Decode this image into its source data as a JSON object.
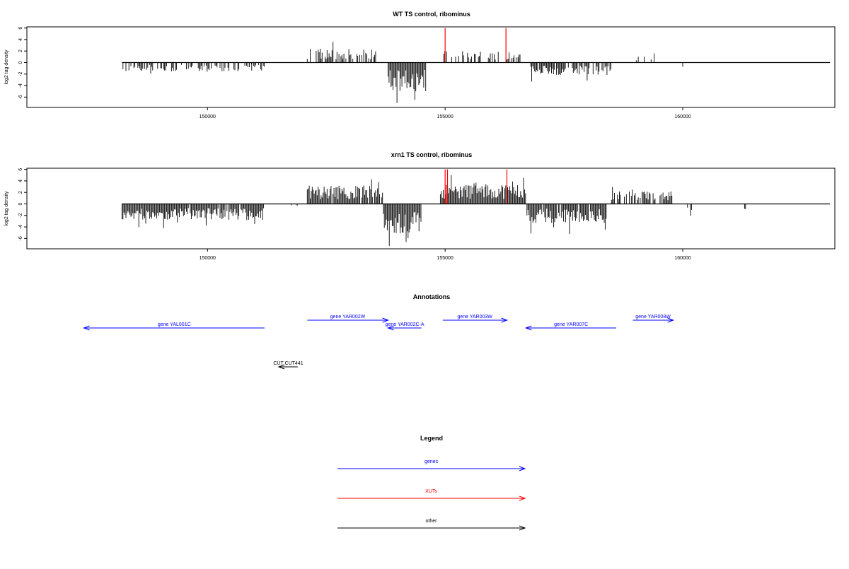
{
  "colors": {
    "gene": "#0000ff",
    "xut": "#ff0000",
    "other": "#000000",
    "bar": "#000000"
  },
  "chart_data": [
    {
      "type": "bar",
      "title": "WT TS control, ribominus",
      "ylabel": "log2 tag density",
      "xlim": [
        146200,
        163200
      ],
      "ylim": [
        -7.8,
        6.2
      ],
      "x_ticks": [
        150000,
        155000,
        160000
      ],
      "y_ticks": [
        -6,
        -4,
        -2,
        0,
        2,
        4,
        6
      ],
      "baseline": {
        "x": [
          148200,
          163100
        ],
        "y": 0
      },
      "series": [
        {
          "segments": [
            {
              "x0": 148200,
              "x1": 151200,
              "dir": -1,
              "amp": 1.6,
              "density": 0.5
            },
            {
              "x0": 150800,
              "x1": 151200,
              "dir": -1,
              "amp": 0.8,
              "density": 0.3
            },
            {
              "x0": 152100,
              "x1": 153600,
              "dir": 1,
              "amp": 2.4,
              "density": 0.6
            },
            {
              "x0": 153800,
              "x1": 154600,
              "dir": -1,
              "amp": 5.0,
              "density": 0.95
            },
            {
              "x0": 154950,
              "x1": 156600,
              "dir": 1,
              "amp": 2.0,
              "density": 0.5
            },
            {
              "x0": 156800,
              "x1": 158500,
              "dir": -1,
              "amp": 2.2,
              "density": 0.75
            },
            {
              "x0": 159000,
              "x1": 159500,
              "dir": 1,
              "amp": 1.4,
              "density": 0.25
            },
            {
              "x0": 160000,
              "x1": 160200,
              "dir": -1,
              "amp": 1.5,
              "density": 0.3
            }
          ]
        },
        {
          "name": "XUTs",
          "color": "#ff0000",
          "x": [
            155000,
            156280
          ],
          "values": [
            6.0,
            6.0
          ]
        }
      ]
    },
    {
      "type": "bar",
      "title": "xrn1 TS control, ribominus",
      "ylabel": "log2 tag density",
      "xlim": [
        146200,
        163200
      ],
      "ylim": [
        -7.8,
        6.2
      ],
      "x_ticks": [
        150000,
        155000,
        160000
      ],
      "y_ticks": [
        -6,
        -4,
        -2,
        0,
        2,
        4,
        6
      ],
      "baseline": {
        "x": [
          148200,
          163100
        ],
        "y": 0
      },
      "series": [
        {
          "segments": [
            {
              "x0": 148200,
              "x1": 151200,
              "dir": -1,
              "amp": 2.8,
              "density": 0.95
            },
            {
              "x0": 151700,
              "x1": 151900,
              "dir": -1,
              "amp": 0.5,
              "density": 0.3
            },
            {
              "x0": 152100,
              "x1": 153700,
              "dir": 1,
              "amp": 3.2,
              "density": 0.95
            },
            {
              "x0": 153700,
              "x1": 154500,
              "dir": -1,
              "amp": 5.2,
              "density": 1.0
            },
            {
              "x0": 154900,
              "x1": 156700,
              "dir": 1,
              "amp": 3.5,
              "density": 1.0
            },
            {
              "x0": 156700,
              "x1": 158400,
              "dir": -1,
              "amp": 3.3,
              "density": 0.95
            },
            {
              "x0": 158500,
              "x1": 159800,
              "dir": 1,
              "amp": 2.2,
              "density": 0.7
            },
            {
              "x0": 160100,
              "x1": 160200,
              "dir": -1,
              "amp": 1.5,
              "density": 0.4
            },
            {
              "x0": 161300,
              "x1": 161350,
              "dir": -1,
              "amp": 0.9,
              "density": 0.5
            }
          ]
        },
        {
          "name": "XUTs",
          "color": "#ff0000",
          "x": [
            155000,
            155050,
            156300
          ],
          "values": [
            6.0,
            6.0,
            6.0
          ]
        }
      ]
    },
    {
      "type": "other",
      "title": "Annotations",
      "xlim": [
        146200,
        163200
      ],
      "features": [
        {
          "label": "gene YAL001C",
          "kind": "gene",
          "start": 151200,
          "end": 147400,
          "row": 1
        },
        {
          "label": "gene YAR002W",
          "kind": "gene",
          "start": 152100,
          "end": 153800,
          "row": 0
        },
        {
          "label": "gene YAR002C-A",
          "kind": "gene",
          "start": 154500,
          "end": 153800,
          "row": 1
        },
        {
          "label": "gene YAR003W",
          "kind": "gene",
          "start": 154950,
          "end": 156300,
          "row": 0
        },
        {
          "label": "gene YAR007C",
          "kind": "gene",
          "start": 158600,
          "end": 156700,
          "row": 1
        },
        {
          "label": "gene YAR008W",
          "kind": "gene",
          "start": 158950,
          "end": 159800,
          "row": 0
        },
        {
          "label": "CUT CUT441",
          "kind": "other",
          "start": 151900,
          "end": 151500,
          "row": 6
        }
      ]
    },
    {
      "type": "other",
      "title": "Legend",
      "entries": [
        {
          "label": "genes",
          "kind": "gene"
        },
        {
          "label": "XUTs",
          "kind": "xut"
        },
        {
          "label": "other",
          "kind": "other"
        }
      ]
    }
  ]
}
